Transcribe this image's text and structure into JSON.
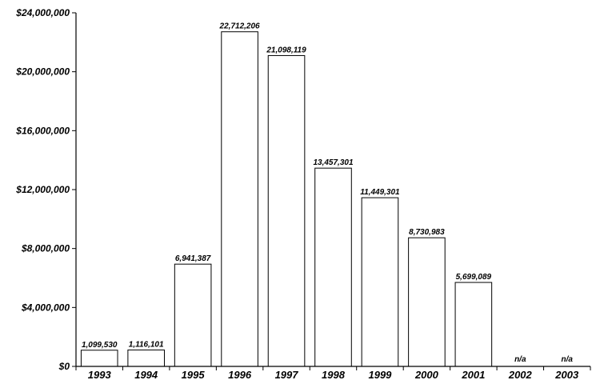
{
  "chart_data": {
    "type": "bar",
    "categories": [
      "1993",
      "1994",
      "1995",
      "1996",
      "1997",
      "1998",
      "1999",
      "2000",
      "2001",
      "2002",
      "2003"
    ],
    "values": [
      1099530,
      1116101,
      6941387,
      22712206,
      21098119,
      13457301,
      11449301,
      8730983,
      5699089,
      null,
      null
    ],
    "data_labels": [
      "1,099,530",
      "1,116,101",
      "6,941,387",
      "22,712,206",
      "21,098,119",
      "13,457,301",
      "11,449,301",
      "8,730,983",
      "5,699,089",
      "n/a",
      "n/a"
    ],
    "ylim": [
      0,
      24000000
    ],
    "y_ticks": [
      0,
      4000000,
      8000000,
      12000000,
      16000000,
      20000000,
      24000000
    ],
    "y_tick_labels": [
      "$0",
      "$4,000,000",
      "$8,000,000",
      "$12,000,000",
      "$16,000,000",
      "$20,000,000",
      "$24,000,000"
    ],
    "title": "",
    "xlabel": "",
    "ylabel": "",
    "grid": false,
    "legend": "none",
    "colors": {
      "bar_fill": "#ffffff",
      "bar_stroke": "#000000"
    }
  }
}
